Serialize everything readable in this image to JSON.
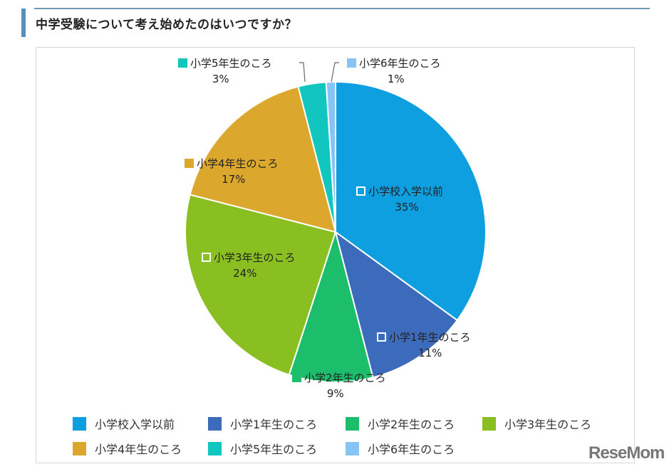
{
  "header": {
    "title": "中学受験について考え始めたのはいつですか？"
  },
  "chart_data": {
    "type": "pie",
    "title": "中学受験について考え始めたのはいつですか？",
    "start_angle_deg": 0,
    "direction": "clockwise",
    "legend_position": "bottom",
    "categories": [
      "小学校入学以前",
      "小学1年生のころ",
      "小学2年生のころ",
      "小学3年生のころ",
      "小学4年生のころ",
      "小学5年生のころ",
      "小学6年生のころ"
    ],
    "values": [
      35,
      11,
      9,
      24,
      17,
      3,
      1
    ],
    "unit": "%",
    "colors": [
      "#0d9fe0",
      "#3d6bbb",
      "#1cbd6b",
      "#8abf22",
      "#dba82d",
      "#12c6c0",
      "#86c4f5"
    ]
  },
  "slice_labels": [
    {
      "name": "小学校入学以前",
      "pct": "35%"
    },
    {
      "name": "小学1年生のころ",
      "pct": "11%"
    },
    {
      "name": "小学2年生のころ",
      "pct": "9%"
    },
    {
      "name": "小学3年生のころ",
      "pct": "24%"
    },
    {
      "name": "小学4年生のころ",
      "pct": "17%"
    },
    {
      "name": "小学5年生のころ",
      "pct": "3%"
    },
    {
      "name": "小学6年生のころ",
      "pct": "1%"
    }
  ],
  "legend": [
    {
      "label": "小学校入学以前",
      "color": "#0d9fe0"
    },
    {
      "label": "小学1年生のころ",
      "color": "#3d6bbb"
    },
    {
      "label": "小学2年生のころ",
      "color": "#1cbd6b"
    },
    {
      "label": "小学3年生のころ",
      "color": "#8abf22"
    },
    {
      "label": "小学4年生のころ",
      "color": "#dba82d"
    },
    {
      "label": "小学5年生のころ",
      "color": "#12c6c0"
    },
    {
      "label": "小学6年生のころ",
      "color": "#86c4f5"
    }
  ],
  "watermark": "ReseMom"
}
